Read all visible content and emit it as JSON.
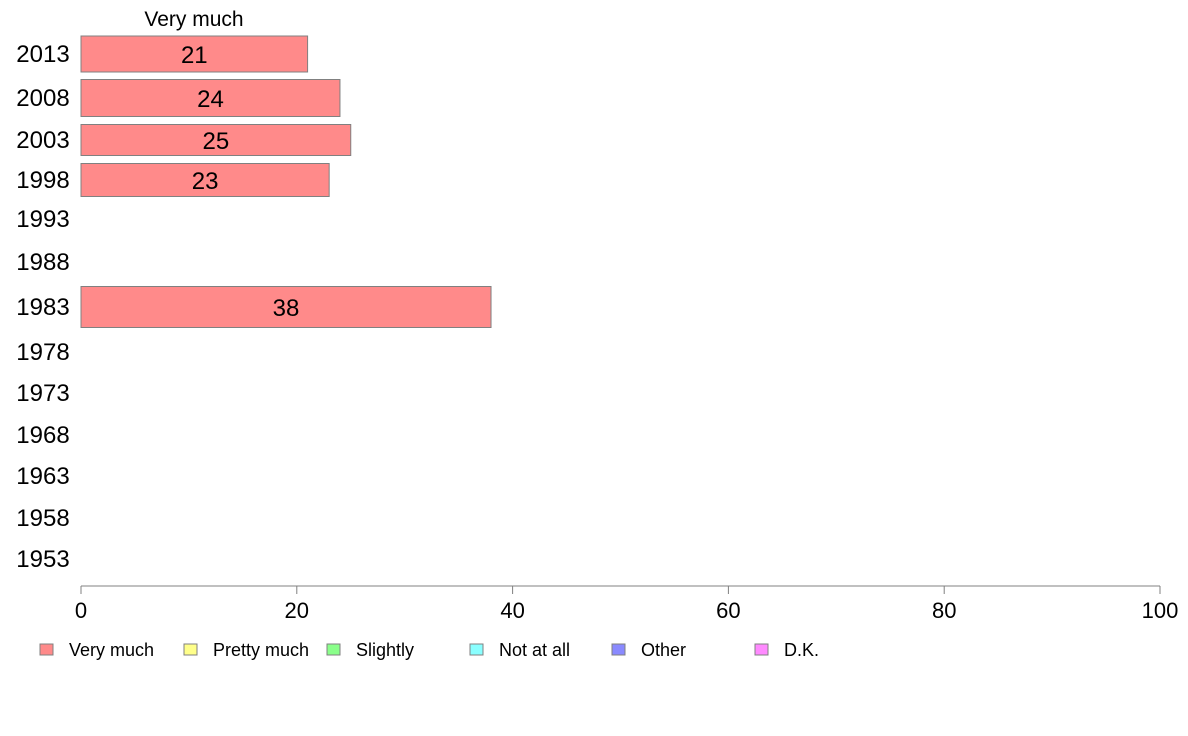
{
  "chart_data": {
    "type": "bar",
    "orientation": "horizontal",
    "stacked": true,
    "categories": [
      "2013",
      "2008",
      "2003",
      "1998",
      "1993",
      "1988",
      "1983",
      "1978",
      "1973",
      "1968",
      "1963",
      "1958",
      "1953"
    ],
    "series": [
      {
        "name": "Very much",
        "color": "#ff8a8a",
        "values": [
          21,
          24,
          25,
          23,
          null,
          null,
          38,
          null,
          null,
          null,
          null,
          null,
          null
        ]
      },
      {
        "name": "Pretty much",
        "color": "#ffff8a",
        "values": [
          null,
          null,
          null,
          null,
          null,
          null,
          null,
          null,
          null,
          null,
          null,
          null,
          null
        ]
      },
      {
        "name": "Slightly",
        "color": "#8aff8a",
        "values": [
          null,
          null,
          null,
          null,
          null,
          null,
          null,
          null,
          null,
          null,
          null,
          null,
          null
        ]
      },
      {
        "name": "Not at all",
        "color": "#8affff",
        "values": [
          null,
          null,
          null,
          null,
          null,
          null,
          null,
          null,
          null,
          null,
          null,
          null,
          null
        ]
      },
      {
        "name": "Other",
        "color": "#8a8aff",
        "values": [
          null,
          null,
          null,
          null,
          null,
          null,
          null,
          null,
          null,
          null,
          null,
          null,
          null
        ]
      },
      {
        "name": "D.K.",
        "color": "#ff8aff",
        "values": [
          null,
          null,
          null,
          null,
          null,
          null,
          null,
          null,
          null,
          null,
          null,
          null,
          null
        ]
      }
    ],
    "xlim": [
      0,
      100
    ],
    "xticks": [
      0,
      20,
      40,
      60,
      80,
      100
    ],
    "top_label": "Very much",
    "legend_position": "bottom",
    "grid": false,
    "title": "",
    "xlabel": "",
    "ylabel": ""
  }
}
